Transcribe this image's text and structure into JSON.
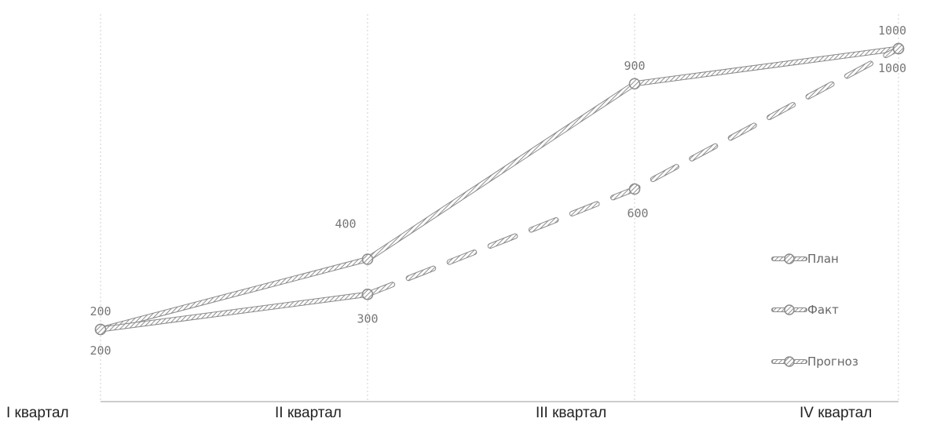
{
  "chart_data": {
    "type": "line",
    "categories": [
      "I квартал",
      "II квартал",
      "III квартал",
      "IV квартал"
    ],
    "series": [
      {
        "name": "План",
        "values": [
          200,
          400,
          900,
          1000
        ],
        "color": "#9a9a9a",
        "dashed": false
      },
      {
        "name": "Факт",
        "values": [
          200,
          300,
          null,
          null
        ],
        "color": "#b0b0b0",
        "dashed": false
      },
      {
        "name": "Прогноз",
        "values": [
          null,
          300,
          600,
          1000
        ],
        "color": "#c4c4c4",
        "dashed": true
      }
    ],
    "data_labels": [
      {
        "series": "План",
        "category": "I квартал",
        "text": "200"
      },
      {
        "series": "План",
        "category": "II квартал",
        "text": "400"
      },
      {
        "series": "План",
        "category": "III квартал",
        "text": "900"
      },
      {
        "series": "План",
        "category": "IV квартал",
        "text": "1000"
      },
      {
        "series": "Факт",
        "category": "I квартал",
        "text": "200"
      },
      {
        "series": "Факт",
        "category": "II квартал",
        "text": "300"
      },
      {
        "series": "Прогноз",
        "category": "III квартал",
        "text": "600"
      },
      {
        "series": "Прогноз",
        "category": "IV квартал",
        "text": "1000"
      }
    ],
    "ylim": [
      0,
      1000
    ],
    "grid": "vertical",
    "legend": "right",
    "title": "",
    "xlabel": "",
    "ylabel": ""
  }
}
